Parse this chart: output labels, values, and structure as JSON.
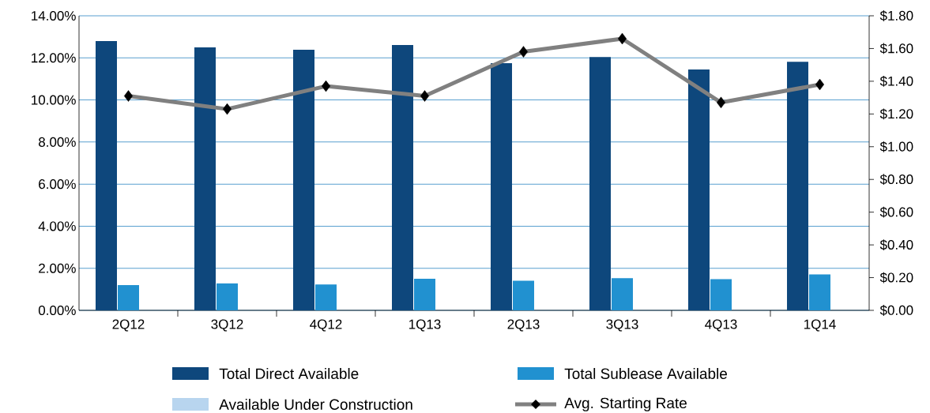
{
  "chart_data": {
    "type": "bar",
    "categories": [
      "2Q12",
      "3Q12",
      "4Q12",
      "1Q13",
      "2Q13",
      "3Q13",
      "4Q13",
      "1Q14"
    ],
    "series": [
      {
        "name": "Total Direct Available",
        "color": "#0e477c",
        "values": [
          12.8,
          12.5,
          12.39,
          12.61,
          11.75,
          12.04,
          11.45,
          11.81
        ]
      },
      {
        "name": "Total Sublease Available",
        "color": "#2191d0",
        "values": [
          1.2,
          1.28,
          1.23,
          1.5,
          1.41,
          1.53,
          1.48,
          1.71
        ]
      },
      {
        "name": "Available Under Construction",
        "color": "#b8d5ef",
        "values": [
          null,
          null,
          0,
          0,
          0,
          0,
          0,
          0
        ]
      },
      {
        "name": "Avg. Starting Rate",
        "type": "line",
        "axis": "y2",
        "color": "#808080",
        "marker": "diamond",
        "values": [
          1.31,
          1.23,
          1.37,
          1.31,
          1.58,
          1.66,
          1.27,
          1.38
        ]
      }
    ],
    "ylim": [
      0,
      14
    ],
    "yticks": [
      {
        "value": 0,
        "label": "0.00%"
      },
      {
        "value": 2,
        "label": "2.00%"
      },
      {
        "value": 4,
        "label": "4.00%"
      },
      {
        "value": 6,
        "label": "6.00%"
      },
      {
        "value": 8,
        "label": "8.00%"
      },
      {
        "value": 10,
        "label": "10.00%"
      },
      {
        "value": 12,
        "label": "12.00%"
      },
      {
        "value": 14,
        "label": "14.00%"
      }
    ],
    "y2lim": [
      0,
      1.8
    ],
    "y2ticks": [
      {
        "value": 0,
        "label": "$0.00"
      },
      {
        "value": 0.2,
        "label": "$0.20"
      },
      {
        "value": 0.4,
        "label": "$0.40"
      },
      {
        "value": 0.6,
        "label": "$0.60"
      },
      {
        "value": 0.8,
        "label": "$0.80"
      },
      {
        "value": 1.0,
        "label": "$1.00"
      },
      {
        "value": 1.2,
        "label": "$1.20"
      },
      {
        "value": 1.4,
        "label": "$1.40"
      },
      {
        "value": 1.6,
        "label": "$1.60"
      },
      {
        "value": 1.8,
        "label": "$1.80"
      }
    ],
    "grid": "y",
    "legend": "bottom"
  }
}
